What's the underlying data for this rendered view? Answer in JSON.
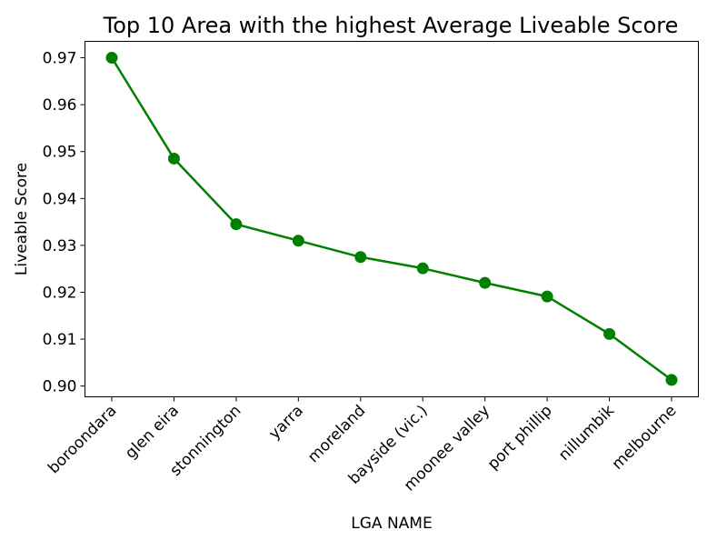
{
  "chart_data": {
    "type": "line",
    "title": "Top 10 Area with the highest Average Liveable Score",
    "xlabel": "LGA NAME",
    "ylabel": "Liveable Score",
    "categories": [
      "boroondara",
      "glen eira",
      "stonnington",
      "yarra",
      "moreland",
      "bayside (vic.)",
      "moonee valley",
      "port phillip",
      "nillumbik",
      "melbourne"
    ],
    "series": [
      {
        "values": [
          0.97,
          0.9485,
          0.9345,
          0.931,
          0.9275,
          0.9251,
          0.922,
          0.9191,
          0.9111,
          0.9013
        ]
      }
    ],
    "yticks": [
      "0.90",
      "0.91",
      "0.92",
      "0.93",
      "0.94",
      "0.95",
      "0.96",
      "0.97"
    ],
    "ylim": [
      0.8977,
      0.9735
    ],
    "grid": false,
    "legend": "none",
    "line_color": "#008000",
    "marker": "circle"
  }
}
